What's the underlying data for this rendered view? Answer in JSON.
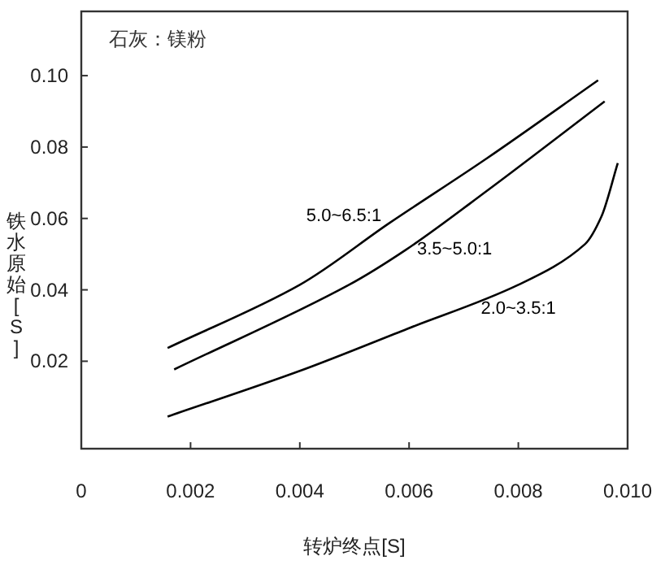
{
  "chart_data": {
    "type": "line",
    "title": "石灰：镁粉",
    "xlabel": "转炉终点[S]",
    "ylabel": "铁水原始[S]",
    "xlim": [
      0,
      0.01
    ],
    "ylim": [
      -0.0045,
      0.118
    ],
    "xticks": [
      {
        "value": 0,
        "label": "0"
      },
      0.002,
      0.004,
      0.006,
      0.008,
      {
        "value": 0.01,
        "label": "0.010"
      }
    ],
    "yticks": [
      0.02,
      0.04,
      0.06,
      0.08,
      {
        "value": 0.1,
        "label": "0.10"
      }
    ],
    "series": [
      {
        "name": "5.0~6.5:1",
        "color": "#000000",
        "x": [
          0.00158,
          0.004,
          0.00564,
          0.00743,
          0.00946
        ],
        "values": [
          0.0237,
          0.0414,
          0.0587,
          0.0769,
          0.0987
        ]
      },
      {
        "name": "3.5~5.0:1",
        "color": "#000000",
        "x": [
          0.0017,
          0.0049,
          0.00594,
          0.00743,
          0.00958
        ],
        "values": [
          0.0177,
          0.0414,
          0.0512,
          0.0678,
          0.0928
        ]
      },
      {
        "name": "2.0~3.5:1",
        "color": "#000000",
        "x": [
          0.00158,
          0.004,
          0.00597,
          0.008,
          0.00922,
          0.00952,
          0.00982
        ],
        "values": [
          0.0045,
          0.0173,
          0.0291,
          0.0414,
          0.0528,
          0.0605,
          0.0755
        ]
      }
    ]
  }
}
